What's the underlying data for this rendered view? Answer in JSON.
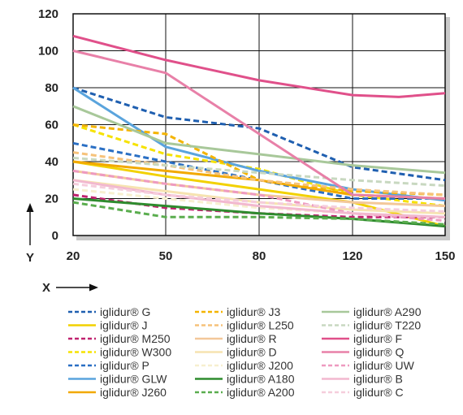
{
  "chart_data": {
    "type": "line",
    "title": "",
    "xlabel": "X",
    "ylabel": "Y",
    "x_categories": [
      "20",
      "50",
      "80",
      "120",
      "150"
    ],
    "y_ticks": [
      "0",
      "20",
      "40",
      "60",
      "80",
      "100",
      "120"
    ],
    "ylim": [
      0,
      120
    ],
    "grid": true,
    "legend_position": "bottom",
    "series": [
      {
        "name": "iglidur® G",
        "color": "#1f5fb0",
        "dash": true,
        "x": [
          20,
          50,
          80,
          120,
          150
        ],
        "values": [
          80,
          64,
          58,
          37,
          30
        ]
      },
      {
        "name": "iglidur® J",
        "color": "#f2d100",
        "dash": false,
        "x": [
          20,
          50,
          80,
          120,
          150
        ],
        "values": [
          40,
          32,
          25,
          18,
          5
        ]
      },
      {
        "name": "iglidur® M250",
        "color": "#c0226f",
        "dash": true,
        "x": [
          20,
          50,
          80,
          120,
          150
        ],
        "values": [
          22,
          15,
          12,
          10,
          10
        ]
      },
      {
        "name": "iglidur® W300",
        "color": "#f6e200",
        "dash": true,
        "x": [
          20,
          50,
          80,
          120,
          150
        ],
        "values": [
          60,
          44,
          36,
          22,
          16
        ]
      },
      {
        "name": "iglidur® P",
        "color": "#2a6fc4",
        "dash": true,
        "x": [
          20,
          50,
          80,
          120,
          150
        ],
        "values": [
          50,
          40,
          30,
          20,
          20
        ]
      },
      {
        "name": "iglidur® GLW",
        "color": "#5aa4dd",
        "dash": false,
        "x": [
          20,
          50,
          80,
          120,
          150
        ],
        "values": [
          80,
          48,
          35,
          25,
          19
        ]
      },
      {
        "name": "iglidur® J260",
        "color": "#f2a900",
        "dash": false,
        "x": [
          20,
          50,
          80,
          120,
          150
        ],
        "values": [
          40,
          35,
          30,
          22,
          20
        ]
      },
      {
        "name": "iglidur® J3",
        "color": "#f4b400",
        "dash": true,
        "x": [
          20,
          50,
          80,
          120,
          150
        ],
        "values": [
          60,
          55,
          30,
          24,
          22
        ]
      },
      {
        "name": "iglidur® L250",
        "color": "#f6c27a",
        "dash": true,
        "x": [
          20,
          50,
          80,
          120,
          150
        ],
        "values": [
          45,
          38,
          30,
          25,
          22
        ]
      },
      {
        "name": "iglidur® R",
        "color": "#f3c89a",
        "dash": false,
        "x": [
          20,
          50,
          80,
          120,
          150
        ],
        "values": [
          35,
          28,
          22,
          18,
          16
        ]
      },
      {
        "name": "iglidur® D",
        "color": "#f6e3b0",
        "dash": false,
        "x": [
          20,
          50,
          80,
          120,
          150
        ],
        "values": [
          30,
          24,
          18,
          14,
          12
        ]
      },
      {
        "name": "iglidur® J200",
        "color": "#f7efcf",
        "dash": true,
        "x": [
          20,
          50,
          80,
          120,
          150
        ],
        "values": [
          25,
          20,
          15,
          12,
          10
        ]
      },
      {
        "name": "iglidur® A180",
        "color": "#2e8b2e",
        "dash": false,
        "x": [
          20,
          50,
          80,
          120,
          150
        ],
        "values": [
          20,
          16,
          12,
          9,
          5
        ]
      },
      {
        "name": "iglidur® A200",
        "color": "#5aad4e",
        "dash": true,
        "x": [
          20,
          50,
          80,
          120,
          150
        ],
        "values": [
          18,
          10,
          10,
          9,
          6
        ]
      },
      {
        "name": "iglidur® A290",
        "color": "#a8c89a",
        "dash": false,
        "x": [
          20,
          50,
          80,
          120,
          150
        ],
        "values": [
          70,
          50,
          44,
          38,
          34
        ]
      },
      {
        "name": "iglidur® T220",
        "color": "#c8d8c0",
        "dash": true,
        "x": [
          20,
          50,
          80,
          120,
          150
        ],
        "values": [
          42,
          38,
          34,
          30,
          27
        ]
      },
      {
        "name": "iglidur® F",
        "color": "#e0508a",
        "dash": false,
        "x": [
          20,
          50,
          80,
          120,
          135,
          150
        ],
        "values": [
          108,
          95,
          84,
          76,
          75,
          77
        ]
      },
      {
        "name": "iglidur® Q",
        "color": "#e880a8",
        "dash": false,
        "x": [
          20,
          50,
          80,
          120,
          150
        ],
        "values": [
          100,
          88,
          55,
          22,
          20
        ]
      },
      {
        "name": "iglidur® UW",
        "color": "#ee9ac0",
        "dash": true,
        "x": [
          20,
          50,
          80,
          120,
          150
        ],
        "values": [
          35,
          28,
          22,
          12,
          8
        ]
      },
      {
        "name": "iglidur® B",
        "color": "#f2b8cf",
        "dash": false,
        "x": [
          20,
          50,
          80,
          120,
          150
        ],
        "values": [
          30,
          22,
          16,
          12,
          10
        ]
      },
      {
        "name": "iglidur® C",
        "color": "#f5cddc",
        "dash": true,
        "x": [
          20,
          50,
          80,
          120,
          150
        ],
        "values": [
          28,
          22,
          18,
          15,
          13
        ]
      }
    ]
  }
}
